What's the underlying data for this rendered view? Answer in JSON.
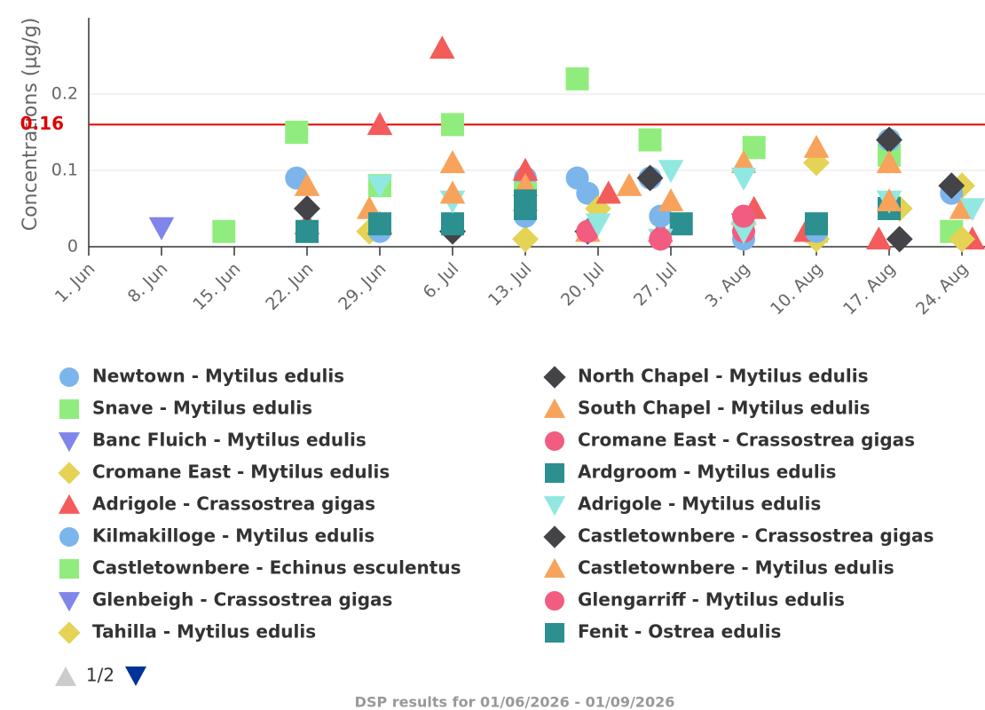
{
  "chart_data": {
    "type": "scatter",
    "y_axis_title": "Concentrations (µg/g)",
    "footer": "DSP results for 01/06/2026 - 01/09/2026",
    "legend_page": "1/2",
    "threshold": 0.16,
    "threshold_color": "#e00000",
    "xlim": [
      "1. Jun",
      "26. Aug"
    ],
    "xticks": [
      "1. Jun",
      "8. Jun",
      "15. Jun",
      "22. Jun",
      "29. Jun",
      "6. Jul",
      "13. Jul",
      "20. Jul",
      "27. Jul",
      "3. Aug",
      "10. Aug",
      "17. Aug",
      "24. Aug"
    ],
    "ylim": [
      0,
      0.3
    ],
    "yticks": [
      0,
      0.1,
      0.2
    ],
    "grid": true,
    "series": [
      {
        "name": "Newtown - Mytilus edulis",
        "color": "#7cb5ec",
        "marker": "circle",
        "x": [
          "21. Jun",
          "13. Jul",
          "18. Jul",
          "19. Jul",
          "3. Aug"
        ],
        "values": [
          0.09,
          0.09,
          0.09,
          0.07,
          0.01
        ]
      },
      {
        "name": "Snave - Mytilus edulis",
        "color": "#90ed7d",
        "marker": "square",
        "x": [
          "14. Jun",
          "21. Jun",
          "29. Jun",
          "6. Jul",
          "18. Jul",
          "25. Jul",
          "4. Aug",
          "10. Aug",
          "17. Aug",
          "23. Aug"
        ],
        "values": [
          0.02,
          0.15,
          0.08,
          0.16,
          0.22,
          0.14,
          0.13,
          0.02,
          0.12,
          0.02
        ]
      },
      {
        "name": "Banc Fluich - Mytilus edulis",
        "color": "#8085e9",
        "marker": "triangle-down",
        "x": [
          "8. Jun"
        ],
        "values": [
          0.025
        ]
      },
      {
        "name": "Cromane East - Mytilus edulis",
        "color": "#e4d354",
        "marker": "diamond",
        "x": [
          "28. Jun",
          "13. Jul",
          "20. Jul",
          "10. Aug",
          "10. Aug",
          "18. Aug",
          "24. Aug"
        ],
        "values": [
          0.02,
          0.01,
          0.05,
          0.11,
          0.01,
          0.05,
          0.08
        ]
      },
      {
        "name": "Adrigole - Crassostrea gigas",
        "color": "#f45b5b",
        "marker": "triangle",
        "x": [
          "22. Jun",
          "29. Jun",
          "29. Jun",
          "5. Jul",
          "13. Jul",
          "21. Jul",
          "26. Jul",
          "4. Aug",
          "9. Aug",
          "16. Aug",
          "25. Aug"
        ],
        "values": [
          0.03,
          0.16,
          0.03,
          0.26,
          0.1,
          0.07,
          0.02,
          0.05,
          0.02,
          0.01,
          0.01
        ]
      },
      {
        "name": "Kilmakilloge - Mytilus edulis",
        "color": "#7cb5ec",
        "marker": "circle",
        "x": [
          "29. Jun",
          "13. Jul",
          "25. Jul",
          "26. Jul",
          "10. Aug",
          "17. Aug",
          "17. Aug",
          "23. Aug"
        ],
        "values": [
          0.02,
          0.04,
          0.09,
          0.04,
          0.02,
          0.14,
          0.05,
          0.07
        ]
      },
      {
        "name": "Castletownbere - Echinus esculentus",
        "color": "#90ed7d",
        "marker": "square",
        "x": [
          "13. Jul"
        ],
        "values": [
          0.07
        ]
      },
      {
        "name": "Glenbeigh - Crassostrea gigas",
        "color": "#8085e9",
        "marker": "triangle-down",
        "x": [
          "3. Aug"
        ],
        "values": [
          0.03
        ]
      },
      {
        "name": "Tahilla - Mytilus edulis",
        "color": "#e4d354",
        "marker": "diamond",
        "x": [
          "3. Aug",
          "24. Aug"
        ],
        "values": [
          0.03,
          0.01
        ]
      },
      {
        "name": "North Chapel - Mytilus edulis",
        "color": "#434348",
        "marker": "diamond",
        "x": [
          "22. Jun",
          "6. Jul",
          "19. Jul",
          "17. Aug"
        ],
        "values": [
          0.05,
          0.02,
          0.02,
          0.14
        ]
      },
      {
        "name": "South Chapel - Mytilus edulis",
        "color": "#f7a35c",
        "marker": "triangle",
        "x": [
          "22. Jun",
          "28. Jun",
          "6. Jul",
          "13. Jul",
          "19. Jul",
          "23. Jul",
          "27. Jul",
          "3. Aug",
          "10. Aug",
          "17. Aug",
          "24. Aug"
        ],
        "values": [
          0.08,
          0.05,
          0.11,
          0.06,
          0.02,
          0.08,
          0.06,
          0.11,
          0.13,
          0.11,
          0.05
        ]
      },
      {
        "name": "Cromane East - Crassostrea gigas",
        "color": "#f15c80",
        "marker": "circle",
        "x": [
          "19. Jul",
          "3. Aug"
        ],
        "values": [
          0.02,
          0.02
        ]
      },
      {
        "name": "Ardgroom - Mytilus edulis",
        "color": "#2b908f",
        "marker": "square",
        "x": [
          "22. Jun",
          "29. Jun",
          "6. Jul",
          "13. Jul",
          "28. Jul",
          "10. Aug",
          "17. Aug"
        ],
        "values": [
          0.02,
          0.03,
          0.03,
          0.05,
          0.03,
          0.03,
          0.05
        ]
      },
      {
        "name": "Adrigole - Mytilus edulis",
        "color": "#91e8e1",
        "marker": "triangle-down",
        "x": [
          "29. Jun",
          "6. Jul",
          "20. Jul",
          "27. Jul",
          "26. Jul",
          "3. Aug",
          "3. Aug",
          "17. Aug",
          "25. Aug"
        ],
        "values": [
          0.08,
          0.06,
          0.03,
          0.1,
          0.01,
          0.09,
          0.02,
          0.06,
          0.05
        ]
      },
      {
        "name": "Castletownbere - Crassostrea gigas",
        "color": "#434348",
        "marker": "diamond",
        "x": [
          "25. Jul",
          "18. Aug",
          "23. Aug"
        ],
        "values": [
          0.09,
          0.01,
          0.08
        ]
      },
      {
        "name": "Castletownbere - Mytilus edulis",
        "color": "#f7a35c",
        "marker": "triangle",
        "x": [
          "6. Jul",
          "13. Jul",
          "17. Aug"
        ],
        "values": [
          0.07,
          0.08,
          0.06
        ]
      },
      {
        "name": "Glengarriff - Mytilus edulis",
        "color": "#f15c80",
        "marker": "circle",
        "x": [
          "26. Jul",
          "3. Aug"
        ],
        "values": [
          0.01,
          0.04
        ]
      },
      {
        "name": "Fenit - Ostrea edulis",
        "color": "#2b908f",
        "marker": "square",
        "x": [
          "13. Jul"
        ],
        "values": [
          0.06
        ]
      }
    ]
  }
}
